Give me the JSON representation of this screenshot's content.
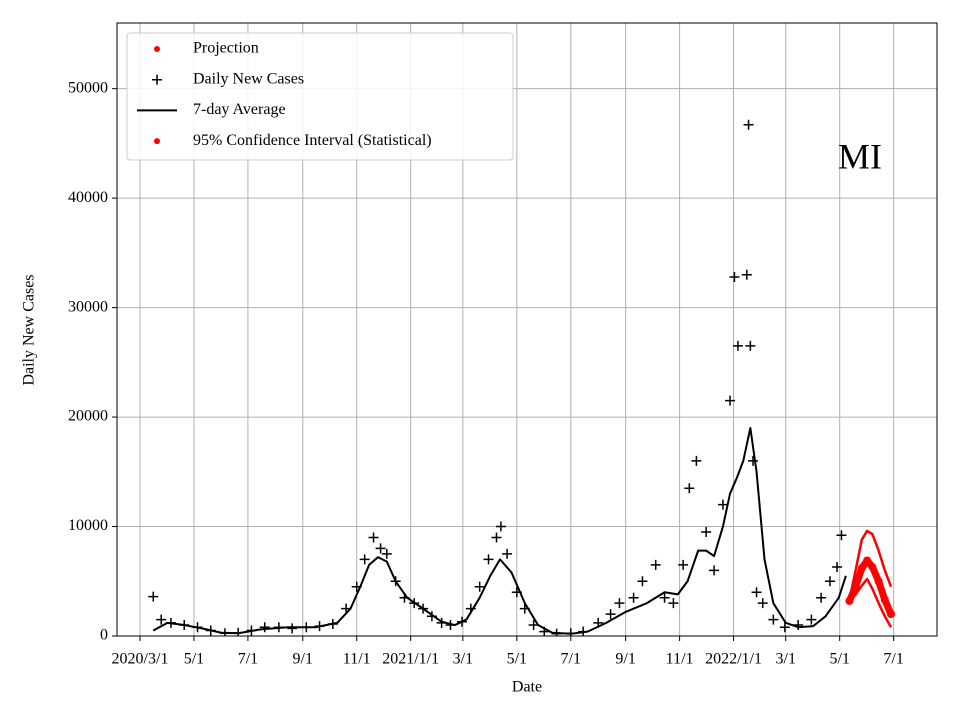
{
  "chart_data": {
    "type": "line",
    "annotation": "MI",
    "x_label": "Date",
    "y_label": "Daily New Cases",
    "xlim": [
      "2020-02-04",
      "2022-08-19"
    ],
    "ylim": [
      0,
      56000
    ],
    "xticks": [
      {
        "value": "2020-03-01",
        "label": "2020/3/1"
      },
      {
        "value": "2020-05-01",
        "label": "5/1"
      },
      {
        "value": "2020-07-01",
        "label": "7/1"
      },
      {
        "value": "2020-09-01",
        "label": "9/1"
      },
      {
        "value": "2020-11-01",
        "label": "11/1"
      },
      {
        "value": "2021-01-01",
        "label": "2021/1/1"
      },
      {
        "value": "2021-03-01",
        "label": "3/1"
      },
      {
        "value": "2021-05-01",
        "label": "5/1"
      },
      {
        "value": "2021-07-01",
        "label": "7/1"
      },
      {
        "value": "2021-09-01",
        "label": "9/1"
      },
      {
        "value": "2021-11-01",
        "label": "11/1"
      },
      {
        "value": "2022-01-01",
        "label": "2022/1/1"
      },
      {
        "value": "2022-03-01",
        "label": "3/1"
      },
      {
        "value": "2022-05-01",
        "label": "5/1"
      },
      {
        "value": "2022-07-01",
        "label": "7/1"
      }
    ],
    "yticks": [
      0,
      10000,
      20000,
      30000,
      40000,
      50000
    ],
    "grid": true,
    "legend": "upper left",
    "series": [
      {
        "name": "Projection",
        "color": "#ff0000",
        "marker": "o",
        "x": [
          "2022-05-12",
          "2022-05-19",
          "2022-05-26",
          "2022-06-01",
          "2022-06-07",
          "2022-06-14",
          "2022-06-21",
          "2022-06-28"
        ],
        "values": [
          3200,
          4500,
          6200,
          6900,
          6300,
          5000,
          3300,
          2000
        ]
      },
      {
        "name": "Daily New Cases",
        "color": "#000000",
        "marker": "+",
        "x": [
          "2020-03-16",
          "2020-03-25",
          "2020-04-05",
          "2020-04-20",
          "2020-05-05",
          "2020-05-20",
          "2020-06-05",
          "2020-06-20",
          "2020-07-05",
          "2020-07-20",
          "2020-08-05",
          "2020-08-20",
          "2020-09-05",
          "2020-09-20",
          "2020-10-05",
          "2020-10-20",
          "2020-11-01",
          "2020-11-10",
          "2020-11-20",
          "2020-11-28",
          "2020-12-05",
          "2020-12-15",
          "2020-12-25",
          "2021-01-05",
          "2021-01-15",
          "2021-01-25",
          "2021-02-05",
          "2021-02-15",
          "2021-02-28",
          "2021-03-10",
          "2021-03-20",
          "2021-03-30",
          "2021-04-08",
          "2021-04-13",
          "2021-04-20",
          "2021-05-01",
          "2021-05-10",
          "2021-05-20",
          "2021-06-01",
          "2021-06-15",
          "2021-07-01",
          "2021-07-15",
          "2021-08-01",
          "2021-08-15",
          "2021-08-25",
          "2021-09-10",
          "2021-09-20",
          "2021-10-05",
          "2021-10-15",
          "2021-10-25",
          "2021-11-05",
          "2021-11-12",
          "2021-11-20",
          "2021-12-01",
          "2021-12-10",
          "2021-12-20",
          "2021-12-28",
          "2022-01-02",
          "2022-01-06",
          "2022-01-16",
          "2022-01-18",
          "2022-01-20",
          "2022-01-23",
          "2022-01-27",
          "2022-02-03",
          "2022-02-15",
          "2022-02-28",
          "2022-03-15",
          "2022-03-30",
          "2022-04-10",
          "2022-04-20",
          "2022-04-28",
          "2022-05-03"
        ],
        "values": [
          3600,
          1500,
          1200,
          1000,
          800,
          500,
          250,
          300,
          500,
          800,
          800,
          700,
          800,
          900,
          1100,
          2500,
          4500,
          7000,
          9000,
          8000,
          7500,
          5000,
          3500,
          3000,
          2500,
          1800,
          1200,
          1000,
          1300,
          2500,
          4500,
          7000,
          9000,
          10000,
          7500,
          4000,
          2500,
          1000,
          400,
          200,
          250,
          400,
          1200,
          2000,
          3000,
          3500,
          5000,
          6500,
          3500,
          3000,
          6500,
          13500,
          16000,
          9500,
          6000,
          12000,
          21500,
          32800,
          26500,
          33000,
          46700,
          26500,
          16000,
          4000,
          3000,
          1500,
          800,
          1000,
          1500,
          3500,
          5000,
          6300,
          9200
        ]
      },
      {
        "name": "7-day Average",
        "color": "#000000",
        "marker": "-",
        "x": [
          "2020-03-16",
          "2020-04-01",
          "2020-04-20",
          "2020-05-10",
          "2020-06-01",
          "2020-06-20",
          "2020-07-15",
          "2020-08-15",
          "2020-09-15",
          "2020-10-10",
          "2020-10-25",
          "2020-11-05",
          "2020-11-15",
          "2020-11-25",
          "2020-12-05",
          "2020-12-15",
          "2020-12-28",
          "2021-01-15",
          "2021-02-05",
          "2021-02-20",
          "2021-03-05",
          "2021-03-20",
          "2021-04-01",
          "2021-04-12",
          "2021-04-25",
          "2021-05-10",
          "2021-05-25",
          "2021-06-10",
          "2021-07-01",
          "2021-07-20",
          "2021-08-10",
          "2021-09-01",
          "2021-09-25",
          "2021-10-15",
          "2021-10-30",
          "2021-11-10",
          "2021-11-22",
          "2021-12-01",
          "2021-12-10",
          "2021-12-20",
          "2021-12-28",
          "2022-01-05",
          "2022-01-12",
          "2022-01-20",
          "2022-01-27",
          "2022-02-05",
          "2022-02-15",
          "2022-03-01",
          "2022-03-15",
          "2022-04-01",
          "2022-04-15",
          "2022-04-30",
          "2022-05-08"
        ],
        "values": [
          500,
          1200,
          1000,
          700,
          300,
          250,
          600,
          800,
          800,
          1200,
          2500,
          4500,
          6500,
          7200,
          6800,
          5000,
          3500,
          2500,
          1300,
          1000,
          1500,
          3500,
          5500,
          7000,
          5800,
          3000,
          1000,
          300,
          200,
          400,
          1200,
          2200,
          3000,
          4000,
          3800,
          5000,
          7800,
          7800,
          7300,
          10000,
          13000,
          14500,
          16000,
          19000,
          15000,
          7000,
          3000,
          1200,
          800,
          900,
          1800,
          3500,
          5500
        ]
      },
      {
        "name": "95% Confidence Interval (Statistical)",
        "color": "#ff0000",
        "marker": "o",
        "x": [
          "2022-05-12",
          "2022-05-19",
          "2022-05-26",
          "2022-06-01",
          "2022-06-07",
          "2022-06-14",
          "2022-06-21",
          "2022-06-28"
        ],
        "upper": [
          3300,
          6000,
          8800,
          9600,
          9300,
          7800,
          6000,
          4500
        ],
        "lower": [
          3100,
          3800,
          4600,
          5200,
          4300,
          3000,
          1800,
          800
        ]
      }
    ]
  }
}
